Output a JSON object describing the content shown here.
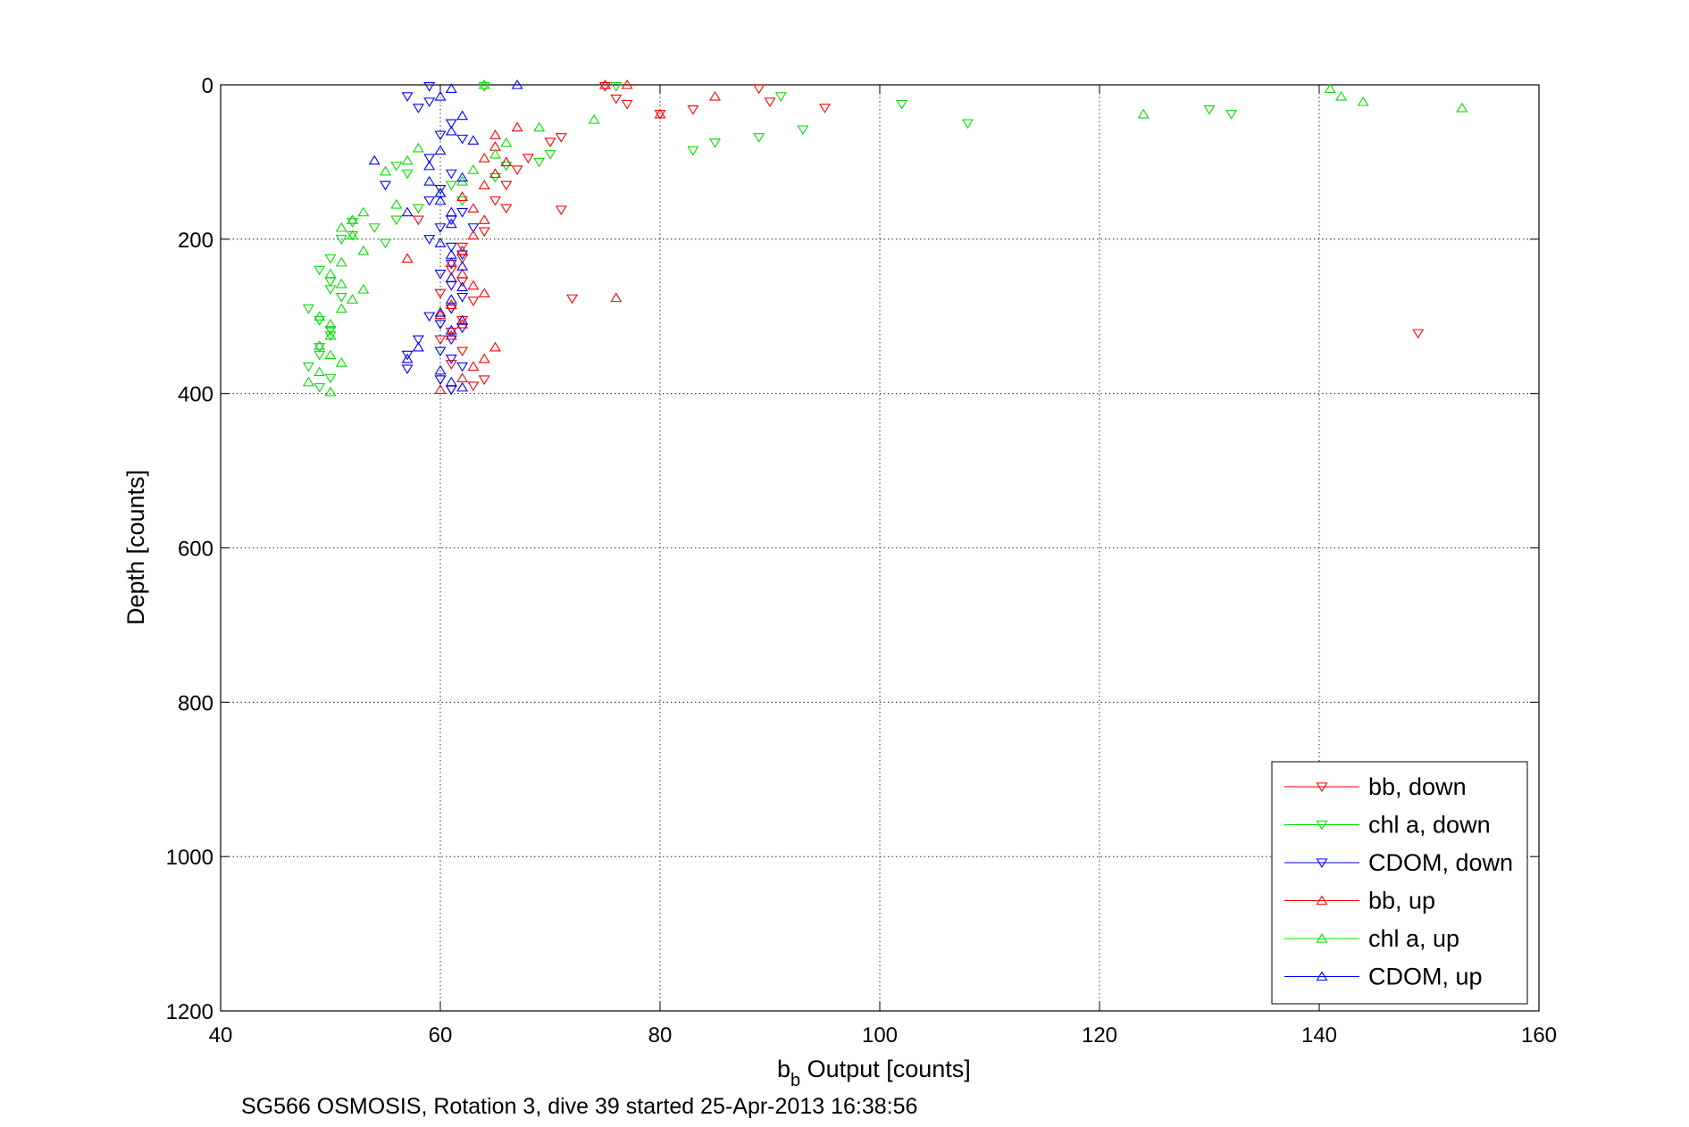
{
  "chart_data": {
    "type": "scatter",
    "xlabel_main": "b",
    "xlabel_sub": "b",
    "xlabel_rest": " Output [counts]",
    "ylabel": "Depth [counts]",
    "caption": "SG566 OSMOSIS, Rotation 3, dive 39 started 25-Apr-2013 16:38:56",
    "xlim": [
      40,
      160
    ],
    "ylim": [
      0,
      1200
    ],
    "y_reversed": true,
    "grid": true,
    "legend_position": "bottom-right",
    "xticks": [
      "40",
      "60",
      "80",
      "100",
      "120",
      "140",
      "160"
    ],
    "yticks": [
      "0",
      "200",
      "400",
      "600",
      "800",
      "1000",
      "1200"
    ],
    "series": [
      {
        "name": "bb, down",
        "color": "#ff0000",
        "marker": "triangle-down",
        "points": [
          [
            75,
            2
          ],
          [
            76,
            18
          ],
          [
            77,
            25
          ],
          [
            80,
            38
          ],
          [
            83,
            32
          ],
          [
            89,
            5
          ],
          [
            90,
            22
          ],
          [
            95,
            30
          ],
          [
            71,
            68
          ],
          [
            70,
            74
          ],
          [
            68,
            95
          ],
          [
            67,
            110
          ],
          [
            66,
            130
          ],
          [
            65,
            150
          ],
          [
            66,
            160
          ],
          [
            71,
            162
          ],
          [
            64,
            190
          ],
          [
            62,
            210
          ],
          [
            62,
            225
          ],
          [
            61,
            240
          ],
          [
            62,
            255
          ],
          [
            60,
            270
          ],
          [
            61,
            290
          ],
          [
            62,
            305
          ],
          [
            61,
            320
          ],
          [
            60,
            330
          ],
          [
            62,
            345
          ],
          [
            61,
            362
          ],
          [
            60,
            382
          ],
          [
            61,
            395
          ],
          [
            63,
            390
          ],
          [
            64,
            382
          ],
          [
            72,
            277
          ],
          [
            58,
            175
          ],
          [
            149,
            322
          ],
          [
            63,
            280
          ]
        ]
      },
      {
        "name": "chl a, down",
        "color": "#00e000",
        "marker": "triangle-down",
        "points": [
          [
            76,
            2
          ],
          [
            64,
            2
          ],
          [
            91,
            15
          ],
          [
            102,
            25
          ],
          [
            108,
            50
          ],
          [
            93,
            58
          ],
          [
            89,
            68
          ],
          [
            85,
            75
          ],
          [
            83,
            85
          ],
          [
            130,
            32
          ],
          [
            132,
            38
          ],
          [
            70,
            90
          ],
          [
            69,
            100
          ],
          [
            66,
            105
          ],
          [
            65,
            120
          ],
          [
            62,
            150
          ],
          [
            58,
            160
          ],
          [
            56,
            175
          ],
          [
            54,
            185
          ],
          [
            52,
            195
          ],
          [
            51,
            200
          ],
          [
            50,
            225
          ],
          [
            49,
            240
          ],
          [
            50,
            255
          ],
          [
            50,
            265
          ],
          [
            51,
            275
          ],
          [
            48,
            290
          ],
          [
            49,
            305
          ],
          [
            50,
            318
          ],
          [
            50,
            325
          ],
          [
            49,
            340
          ],
          [
            49,
            350
          ],
          [
            48,
            365
          ],
          [
            50,
            380
          ],
          [
            49,
            392
          ],
          [
            61,
            130
          ],
          [
            57,
            115
          ],
          [
            56,
            105
          ],
          [
            52,
            178
          ],
          [
            55,
            205
          ]
        ]
      },
      {
        "name": "CDOM, down",
        "color": "#0000ff",
        "marker": "triangle-down",
        "points": [
          [
            59,
            2
          ],
          [
            57,
            15
          ],
          [
            58,
            30
          ],
          [
            59,
            22
          ],
          [
            61,
            50
          ],
          [
            60,
            65
          ],
          [
            62,
            70
          ],
          [
            59,
            95
          ],
          [
            61,
            115
          ],
          [
            60,
            135
          ],
          [
            59,
            150
          ],
          [
            62,
            165
          ],
          [
            61,
            175
          ],
          [
            60,
            185
          ],
          [
            59,
            200
          ],
          [
            61,
            210
          ],
          [
            62,
            220
          ],
          [
            61,
            232
          ],
          [
            60,
            245
          ],
          [
            61,
            260
          ],
          [
            62,
            275
          ],
          [
            61,
            290
          ],
          [
            59,
            300
          ],
          [
            62,
            315
          ],
          [
            61,
            330
          ],
          [
            60,
            345
          ],
          [
            61,
            355
          ],
          [
            62,
            365
          ],
          [
            60,
            382
          ],
          [
            61,
            395
          ],
          [
            57,
            368
          ],
          [
            57,
            350
          ],
          [
            58,
            330
          ],
          [
            60,
            310
          ],
          [
            63,
            185
          ],
          [
            55,
            130
          ]
        ]
      },
      {
        "name": "bb, up",
        "color": "#ff0000",
        "marker": "triangle-up",
        "points": [
          [
            75,
            0
          ],
          [
            77,
            0
          ],
          [
            85,
            15
          ],
          [
            80,
            38
          ],
          [
            65,
            80
          ],
          [
            64,
            95
          ],
          [
            66,
            100
          ],
          [
            65,
            115
          ],
          [
            64,
            130
          ],
          [
            62,
            145
          ],
          [
            63,
            160
          ],
          [
            64,
            175
          ],
          [
            63,
            195
          ],
          [
            62,
            215
          ],
          [
            61,
            230
          ],
          [
            62,
            245
          ],
          [
            63,
            260
          ],
          [
            64,
            270
          ],
          [
            61,
            285
          ],
          [
            60,
            298
          ],
          [
            62,
            310
          ],
          [
            61,
            325
          ],
          [
            65,
            340
          ],
          [
            64,
            355
          ],
          [
            63,
            365
          ],
          [
            62,
            380
          ],
          [
            60,
            395
          ],
          [
            57,
            225
          ],
          [
            76,
            276
          ],
          [
            67,
            55
          ],
          [
            65,
            65
          ]
        ]
      },
      {
        "name": "chl a, up",
        "color": "#00e000",
        "marker": "triangle-up",
        "points": [
          [
            64,
            0
          ],
          [
            141,
            5
          ],
          [
            142,
            15
          ],
          [
            144,
            22
          ],
          [
            153,
            30
          ],
          [
            124,
            38
          ],
          [
            74,
            45
          ],
          [
            69,
            55
          ],
          [
            66,
            75
          ],
          [
            65,
            90
          ],
          [
            63,
            110
          ],
          [
            62,
            125
          ],
          [
            60,
            140
          ],
          [
            56,
            155
          ],
          [
            53,
            165
          ],
          [
            52,
            175
          ],
          [
            51,
            185
          ],
          [
            52,
            195
          ],
          [
            53,
            215
          ],
          [
            51,
            230
          ],
          [
            50,
            245
          ],
          [
            51,
            258
          ],
          [
            53,
            265
          ],
          [
            52,
            278
          ],
          [
            51,
            290
          ],
          [
            49,
            300
          ],
          [
            50,
            310
          ],
          [
            50,
            325
          ],
          [
            49,
            338
          ],
          [
            50,
            350
          ],
          [
            51,
            360
          ],
          [
            49,
            372
          ],
          [
            48,
            385
          ],
          [
            50,
            398
          ],
          [
            58,
            82
          ],
          [
            57,
            98
          ],
          [
            55,
            112
          ]
        ]
      },
      {
        "name": "CDOM, up",
        "color": "#0000ff",
        "marker": "triangle-up",
        "points": [
          [
            67,
            0
          ],
          [
            61,
            5
          ],
          [
            60,
            15
          ],
          [
            62,
            40
          ],
          [
            61,
            60
          ],
          [
            63,
            72
          ],
          [
            60,
            85
          ],
          [
            59,
            105
          ],
          [
            62,
            120
          ],
          [
            60,
            140
          ],
          [
            57,
            165
          ],
          [
            61,
            180
          ],
          [
            60,
            205
          ],
          [
            61,
            220
          ],
          [
            62,
            235
          ],
          [
            61,
            250
          ],
          [
            62,
            262
          ],
          [
            61,
            278
          ],
          [
            60,
            295
          ],
          [
            62,
            305
          ],
          [
            61,
            318
          ],
          [
            58,
            340
          ],
          [
            57,
            355
          ],
          [
            60,
            370
          ],
          [
            61,
            385
          ],
          [
            62,
            392
          ],
          [
            54,
            98
          ],
          [
            59,
            125
          ],
          [
            60,
            150
          ],
          [
            61,
            165
          ]
        ]
      }
    ]
  }
}
